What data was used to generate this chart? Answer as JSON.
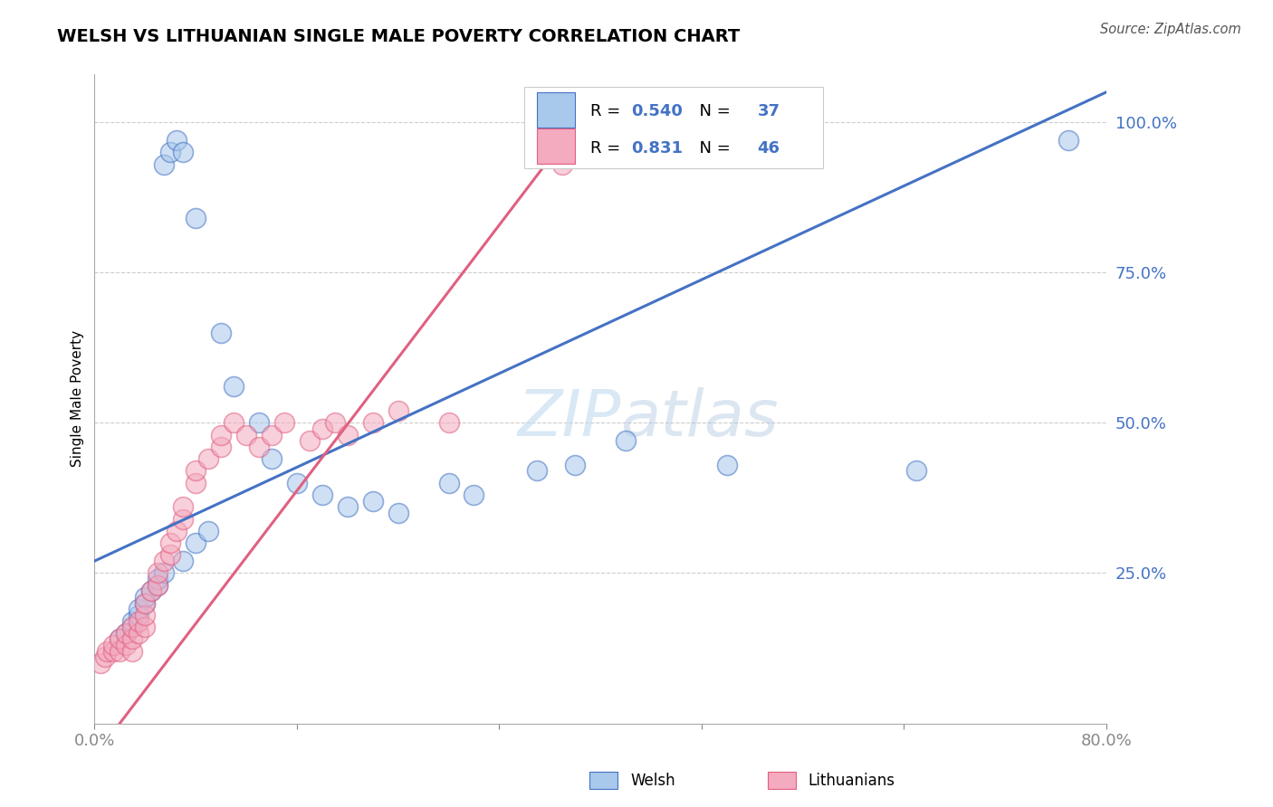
{
  "title": "WELSH VS LITHUANIAN SINGLE MALE POVERTY CORRELATION CHART",
  "source": "Source: ZipAtlas.com",
  "ylabel": "Single Male Poverty",
  "legend_welsh": "Welsh",
  "legend_lithuanians": "Lithuanians",
  "R_welsh": 0.54,
  "N_welsh": 37,
  "R_lith": 0.831,
  "N_lith": 46,
  "welsh_color": "#A8C8EC",
  "lith_color": "#F4AABF",
  "welsh_line_color": "#4472C4",
  "lith_line_color": "#E06080",
  "axis_color": "#4472C4",
  "xmin": 0.0,
  "xmax": 0.8,
  "ymin": 0.0,
  "ymax": 1.08,
  "welsh_line_x0": 0.0,
  "welsh_line_y0": 0.27,
  "welsh_line_x1": 0.8,
  "welsh_line_y1": 1.05,
  "lith_line_x0": 0.02,
  "lith_line_y0": 0.0,
  "lith_line_x1": 0.4,
  "lith_line_y1": 1.05,
  "welsh_scatter_x": [
    0.02,
    0.025,
    0.03,
    0.03,
    0.035,
    0.035,
    0.04,
    0.04,
    0.045,
    0.05,
    0.05,
    0.055,
    0.055,
    0.06,
    0.065,
    0.07,
    0.07,
    0.08,
    0.08,
    0.09,
    0.1,
    0.11,
    0.13,
    0.14,
    0.16,
    0.18,
    0.2,
    0.22,
    0.24,
    0.28,
    0.3,
    0.35,
    0.38,
    0.42,
    0.5,
    0.65,
    0.77
  ],
  "welsh_scatter_y": [
    0.14,
    0.15,
    0.16,
    0.17,
    0.18,
    0.19,
    0.2,
    0.21,
    0.22,
    0.23,
    0.24,
    0.25,
    0.93,
    0.95,
    0.97,
    0.27,
    0.95,
    0.3,
    0.84,
    0.32,
    0.65,
    0.56,
    0.5,
    0.44,
    0.4,
    0.38,
    0.36,
    0.37,
    0.35,
    0.4,
    0.38,
    0.42,
    0.43,
    0.47,
    0.43,
    0.42,
    0.97
  ],
  "lith_scatter_x": [
    0.005,
    0.008,
    0.01,
    0.015,
    0.015,
    0.02,
    0.02,
    0.025,
    0.025,
    0.03,
    0.03,
    0.03,
    0.035,
    0.035,
    0.04,
    0.04,
    0.04,
    0.045,
    0.05,
    0.05,
    0.055,
    0.06,
    0.06,
    0.065,
    0.07,
    0.07,
    0.08,
    0.08,
    0.09,
    0.1,
    0.1,
    0.11,
    0.12,
    0.13,
    0.14,
    0.15,
    0.17,
    0.18,
    0.19,
    0.2,
    0.22,
    0.24,
    0.28,
    0.37,
    0.37,
    0.38
  ],
  "lith_scatter_y": [
    0.1,
    0.11,
    0.12,
    0.12,
    0.13,
    0.12,
    0.14,
    0.13,
    0.15,
    0.12,
    0.14,
    0.16,
    0.15,
    0.17,
    0.16,
    0.18,
    0.2,
    0.22,
    0.23,
    0.25,
    0.27,
    0.28,
    0.3,
    0.32,
    0.34,
    0.36,
    0.4,
    0.42,
    0.44,
    0.46,
    0.48,
    0.5,
    0.48,
    0.46,
    0.48,
    0.5,
    0.47,
    0.49,
    0.5,
    0.48,
    0.5,
    0.52,
    0.5,
    0.93,
    0.96,
    0.98
  ]
}
